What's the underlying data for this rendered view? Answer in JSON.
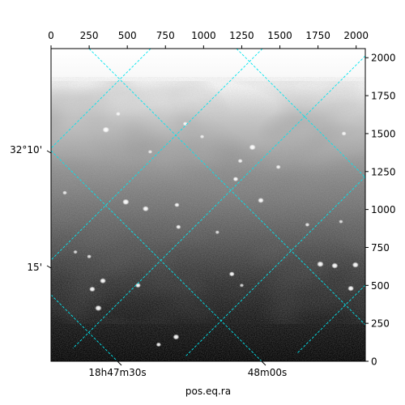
{
  "chart_data": {
    "type": "image",
    "title": "",
    "xlabel": "pos.eq.ra",
    "pixel_axes": {
      "x_ticks": [
        0,
        250,
        500,
        750,
        1000,
        1250,
        1500,
        1750,
        2000
      ],
      "y_ticks": [
        0,
        250,
        500,
        750,
        1000,
        1250,
        1500,
        1750,
        2000
      ],
      "xlim": [
        0,
        2060
      ],
      "ylim": [
        0,
        2060
      ],
      "x_tick_labels": [
        "0",
        "250",
        "500",
        "750",
        "1000",
        "1250",
        "1500",
        "1750",
        "2000"
      ],
      "y_tick_labels": [
        "0",
        "250",
        "500",
        "750",
        "1000",
        "1250",
        "1500",
        "1750",
        "2000"
      ]
    },
    "world_axes": {
      "ra_tick_labels": [
        "18h47m30s",
        "48m00s"
      ],
      "dec_tick_labels": [
        "32°10'",
        "15'"
      ]
    },
    "grid": true,
    "grid_color": "#00e5ee",
    "colormap": "gray",
    "stars": [
      {
        "x": 360,
        "y": 1525,
        "brightness": 0.95
      },
      {
        "x": 1320,
        "y": 1410,
        "brightness": 0.9
      },
      {
        "x": 490,
        "y": 1050,
        "brightness": 0.95
      },
      {
        "x": 620,
        "y": 1005,
        "brightness": 0.85
      },
      {
        "x": 1375,
        "y": 1060,
        "brightness": 0.8
      },
      {
        "x": 825,
        "y": 1030,
        "brightness": 0.6
      },
      {
        "x": 835,
        "y": 885,
        "brightness": 0.6
      },
      {
        "x": 1765,
        "y": 640,
        "brightness": 0.95
      },
      {
        "x": 1860,
        "y": 630,
        "brightness": 0.9
      },
      {
        "x": 1995,
        "y": 635,
        "brightness": 0.9
      },
      {
        "x": 1965,
        "y": 480,
        "brightness": 0.85
      },
      {
        "x": 340,
        "y": 530,
        "brightness": 0.85
      },
      {
        "x": 270,
        "y": 475,
        "brightness": 0.8
      },
      {
        "x": 310,
        "y": 350,
        "brightness": 0.95
      },
      {
        "x": 570,
        "y": 500,
        "brightness": 0.7
      },
      {
        "x": 1185,
        "y": 575,
        "brightness": 0.7
      },
      {
        "x": 820,
        "y": 160,
        "brightness": 0.85
      },
      {
        "x": 705,
        "y": 110,
        "brightness": 0.6
      },
      {
        "x": 1210,
        "y": 1200,
        "brightness": 0.65
      },
      {
        "x": 1240,
        "y": 1320,
        "brightness": 0.55
      },
      {
        "x": 880,
        "y": 1565,
        "brightness": 0.55
      },
      {
        "x": 440,
        "y": 1630,
        "brightness": 0.5
      },
      {
        "x": 1490,
        "y": 1280,
        "brightness": 0.55
      },
      {
        "x": 1920,
        "y": 1500,
        "brightness": 0.55
      },
      {
        "x": 90,
        "y": 1110,
        "brightness": 0.5
      },
      {
        "x": 250,
        "y": 690,
        "brightness": 0.5
      },
      {
        "x": 160,
        "y": 720,
        "brightness": 0.45
      },
      {
        "x": 1680,
        "y": 900,
        "brightness": 0.5
      },
      {
        "x": 1900,
        "y": 920,
        "brightness": 0.45
      },
      {
        "x": 990,
        "y": 1480,
        "brightness": 0.45
      },
      {
        "x": 1090,
        "y": 850,
        "brightness": 0.45
      },
      {
        "x": 1250,
        "y": 500,
        "brightness": 0.45
      },
      {
        "x": 650,
        "y": 1380,
        "brightness": 0.45
      }
    ]
  }
}
